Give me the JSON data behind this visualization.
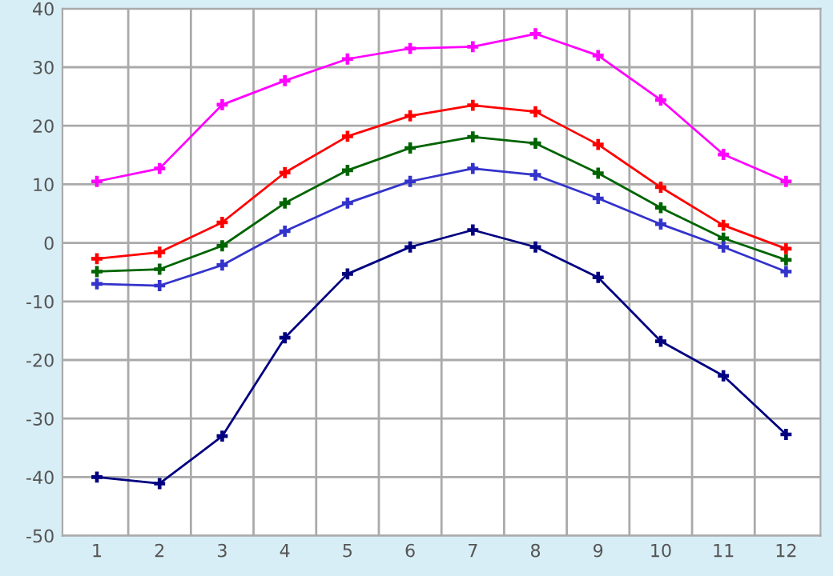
{
  "chart_data": {
    "type": "line",
    "categories": [
      "1",
      "2",
      "3",
      "4",
      "5",
      "6",
      "7",
      "8",
      "9",
      "10",
      "11",
      "12"
    ],
    "series": [
      {
        "color": "#ff00ff",
        "values": [
          10.5,
          12.7,
          23.6,
          27.7,
          31.4,
          33.2,
          33.5,
          35.7,
          32.0,
          24.4,
          15.1,
          10.5
        ]
      },
      {
        "color": "#ff0000",
        "values": [
          -2.7,
          -1.6,
          3.5,
          12.0,
          18.2,
          21.7,
          23.5,
          22.4,
          16.8,
          9.5,
          3.0,
          -1.0
        ]
      },
      {
        "color": "#006400",
        "values": [
          -4.9,
          -4.5,
          -0.5,
          6.8,
          12.4,
          16.2,
          18.1,
          17.0,
          11.9,
          6.0,
          0.8,
          -2.9
        ]
      },
      {
        "color": "#3333cc",
        "values": [
          -7.0,
          -7.3,
          -3.8,
          2.0,
          6.8,
          10.5,
          12.7,
          11.6,
          7.6,
          3.2,
          -0.7,
          -4.9
        ]
      },
      {
        "color": "#000080",
        "values": [
          -40.0,
          -41.1,
          -33.0,
          -16.2,
          -5.3,
          -0.7,
          2.2,
          -0.7,
          -5.9,
          -16.8,
          -22.7,
          -32.7
        ]
      }
    ],
    "ylim": [
      -50,
      40
    ],
    "yticks": [
      -50,
      -40,
      -30,
      -20,
      -10,
      0,
      10,
      20,
      30,
      40
    ],
    "grid": true,
    "marker": "cross",
    "line_style": "solid",
    "legend": false
  }
}
